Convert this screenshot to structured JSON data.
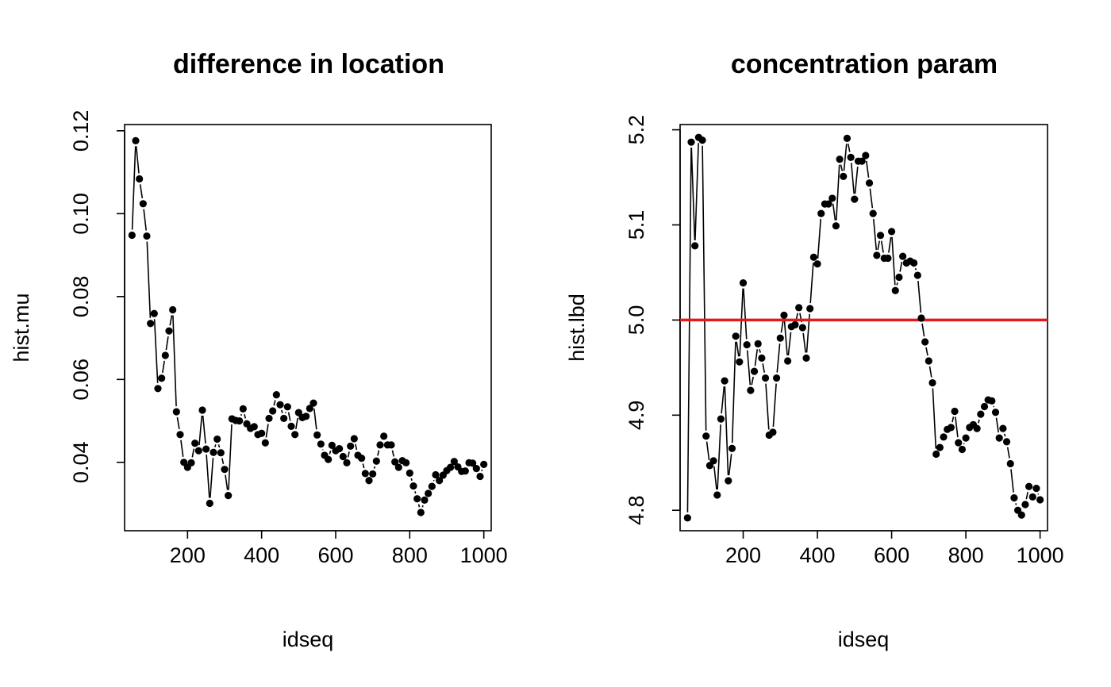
{
  "chart_data": [
    {
      "type": "scatter",
      "title": "difference in location",
      "xlabel": "idseq",
      "ylabel": "hist.mu",
      "xlim": [
        30,
        1020
      ],
      "ylim": [
        0.0235,
        0.1215
      ],
      "x_ticks": [
        "200",
        "400",
        "600",
        "800",
        "1000"
      ],
      "y_ticks": [
        "0.04",
        "0.06",
        "0.08",
        "0.10",
        "0.12"
      ],
      "lines_connect_points": true,
      "series": [
        {
          "x": [
            50,
            60,
            70,
            80,
            90,
            100,
            110,
            120,
            130,
            140,
            150,
            160,
            170,
            180,
            190,
            200,
            210,
            220,
            230,
            240,
            250,
            260,
            270,
            280,
            290,
            300,
            310,
            320,
            330,
            340,
            350,
            360,
            370,
            380,
            390,
            400,
            410,
            420,
            430,
            440,
            450,
            460,
            470,
            480,
            490,
            500,
            510,
            520,
            530,
            540,
            550,
            560,
            570,
            580,
            590,
            600,
            610,
            620,
            630,
            640,
            650,
            660,
            670,
            680,
            690,
            700,
            710,
            720,
            730,
            740,
            750,
            760,
            770,
            780,
            790,
            800,
            810,
            820,
            830,
            840,
            850,
            860,
            870,
            880,
            890,
            900,
            910,
            920,
            930,
            940,
            950,
            960,
            970,
            980,
            990,
            1000
          ],
          "y": [
            0.0948,
            0.1176,
            0.1084,
            0.1024,
            0.0946,
            0.0735,
            0.0759,
            0.0578,
            0.0603,
            0.0658,
            0.0717,
            0.0768,
            0.0522,
            0.0467,
            0.04,
            0.0388,
            0.0399,
            0.0446,
            0.0428,
            0.0526,
            0.0432,
            0.0301,
            0.0424,
            0.0456,
            0.0423,
            0.0383,
            0.032,
            0.0505,
            0.0501,
            0.05,
            0.0529,
            0.0493,
            0.0482,
            0.0486,
            0.0467,
            0.047,
            0.0447,
            0.0506,
            0.0524,
            0.0563,
            0.0539,
            0.0506,
            0.0534,
            0.0487,
            0.0467,
            0.052,
            0.0508,
            0.0511,
            0.053,
            0.0543,
            0.0466,
            0.0444,
            0.0417,
            0.0407,
            0.0441,
            0.0428,
            0.0433,
            0.0414,
            0.0399,
            0.0439,
            0.0457,
            0.0417,
            0.041,
            0.0373,
            0.0356,
            0.0372,
            0.0403,
            0.0442,
            0.0463,
            0.0442,
            0.0442,
            0.0401,
            0.0388,
            0.0404,
            0.0399,
            0.0374,
            0.0343,
            0.0312,
            0.0279,
            0.0309,
            0.0325,
            0.0342,
            0.037,
            0.0356,
            0.0369,
            0.038,
            0.0388,
            0.0402,
            0.0389,
            0.0378,
            0.0379,
            0.0399,
            0.0398,
            0.0385,
            0.0366,
            0.0395
          ]
        }
      ]
    },
    {
      "type": "scatter",
      "title": "concentration param",
      "xlabel": "idseq",
      "ylabel": "hist.lbd",
      "xlim": [
        30,
        1020
      ],
      "ylim": [
        4.7785,
        5.2055
      ],
      "x_ticks": [
        "200",
        "400",
        "600",
        "800",
        "1000"
      ],
      "y_ticks": [
        "4.8",
        "4.9",
        "5.0",
        "5.1",
        "5.2"
      ],
      "lines_connect_points": true,
      "reference_line": {
        "y": 5.0,
        "color": "#e31a1c",
        "orientation": "horizontal"
      },
      "series": [
        {
          "x": [
            50,
            60,
            70,
            80,
            90,
            100,
            110,
            120,
            130,
            140,
            150,
            160,
            170,
            180,
            190,
            200,
            210,
            220,
            230,
            240,
            250,
            260,
            270,
            280,
            290,
            300,
            310,
            320,
            330,
            340,
            350,
            360,
            370,
            380,
            390,
            400,
            410,
            420,
            430,
            440,
            450,
            460,
            470,
            480,
            490,
            500,
            510,
            520,
            530,
            540,
            550,
            560,
            570,
            580,
            590,
            600,
            610,
            620,
            630,
            640,
            650,
            660,
            670,
            680,
            690,
            700,
            710,
            720,
            730,
            740,
            750,
            760,
            770,
            780,
            790,
            800,
            810,
            820,
            830,
            840,
            850,
            860,
            870,
            880,
            890,
            900,
            910,
            920,
            930,
            940,
            950,
            960,
            970,
            980,
            990,
            1000
          ],
          "y": [
            4.792,
            5.187,
            5.078,
            5.192,
            5.189,
            4.878,
            4.847,
            4.852,
            4.816,
            4.896,
            4.936,
            4.831,
            4.865,
            4.983,
            4.956,
            5.039,
            4.974,
            4.926,
            4.946,
            4.975,
            4.96,
            4.939,
            4.879,
            4.882,
            4.939,
            4.981,
            5.005,
            4.957,
            4.993,
            4.995,
            5.013,
            4.992,
            4.96,
            5.012,
            5.066,
            5.059,
            5.112,
            5.122,
            5.122,
            5.128,
            5.099,
            5.169,
            5.151,
            5.191,
            5.171,
            5.127,
            5.167,
            5.167,
            5.173,
            5.144,
            5.112,
            5.068,
            5.089,
            5.065,
            5.065,
            5.093,
            5.031,
            5.045,
            5.067,
            5.06,
            5.062,
            5.06,
            5.047,
            5.002,
            4.977,
            4.957,
            4.934,
            4.859,
            4.866,
            4.877,
            4.885,
            4.887,
            4.904,
            4.871,
            4.864,
            4.876,
            4.887,
            4.89,
            4.886,
            4.901,
            4.909,
            4.916,
            4.915,
            4.903,
            4.876,
            4.886,
            4.872,
            4.849,
            4.813,
            4.8,
            4.795,
            4.806,
            4.825,
            4.814,
            4.823,
            4.811
          ]
        }
      ]
    }
  ]
}
